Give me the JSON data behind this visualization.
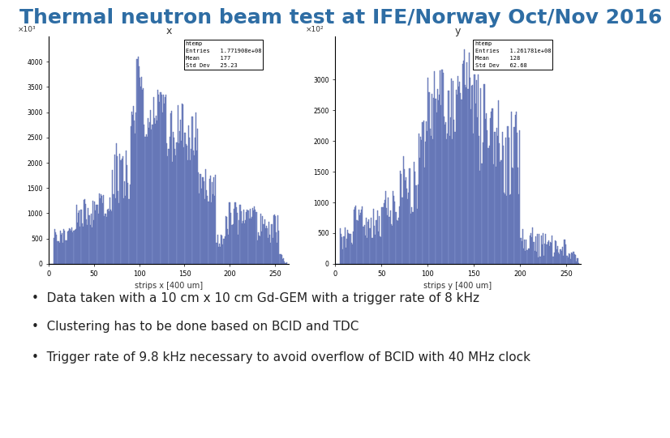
{
  "title": "Thermal neutron beam test at IFE/Norway Oct/Nov 2016",
  "title_color": "#2E6DA4",
  "title_fontsize": 18,
  "background_color": "#ffffff",
  "footer_color": "#2E6DA4",
  "bullet_points": [
    "Data taken with a 10 cm x 10 cm Gd-GEM with a trigger rate of 8 kHz",
    "Clustering has to be done based on BCID and TDC",
    "Trigger rate of 9.8 kHz necessary to avoid overflow of BCID with 40 MHz clock"
  ],
  "plot_x_title": "x",
  "plot_y_title": "y",
  "plot_x_xlabel": "strips x [400 um]",
  "plot_y_xlabel": "strips y [400 um]",
  "text_color": "#333333",
  "hist_color": "#7B8DC8",
  "hist_edge_color": "#5566AA",
  "legend_x": {
    "title": "htemp",
    "entries": "1.771908e+08",
    "mean": "177",
    "std_dev": "25.23"
  },
  "legend_y": {
    "title": "htemp",
    "entries": "1.261781e+08",
    "mean": "128",
    "std_dev": "62.68"
  },
  "x_scale_label": "×10³",
  "y_scale_label": "×10²"
}
